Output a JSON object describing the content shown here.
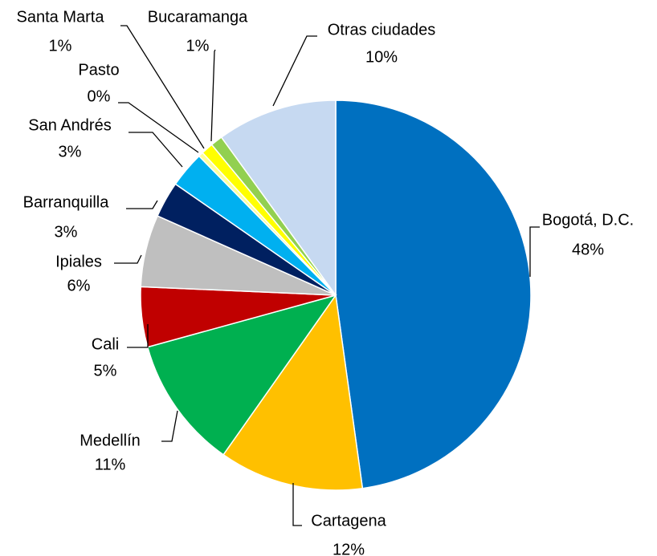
{
  "chart_data": {
    "type": "pie",
    "categories": [
      "Bogotá, D.C.",
      "Cartagena",
      "Medellín",
      "Cali",
      "Ipiales",
      "Barranquilla",
      "San Andrés",
      "Pasto",
      "Santa Marta",
      "Bucaramanga",
      "Otras ciudades"
    ],
    "values": [
      48,
      12,
      11,
      5,
      6,
      3,
      3,
      0.4,
      1,
      1,
      10
    ],
    "value_labels": [
      "48%",
      "12%",
      "11%",
      "5%",
      "6%",
      "3%",
      "3%",
      "0%",
      "1%",
      "1%",
      "10%"
    ],
    "colors": [
      "#0070c0",
      "#ffc000",
      "#00b050",
      "#c00000",
      "#bfbfbf",
      "#002060",
      "#00b0f0",
      "#ffff99",
      "#ffff00",
      "#92d050",
      "#c6d9f1"
    ]
  }
}
